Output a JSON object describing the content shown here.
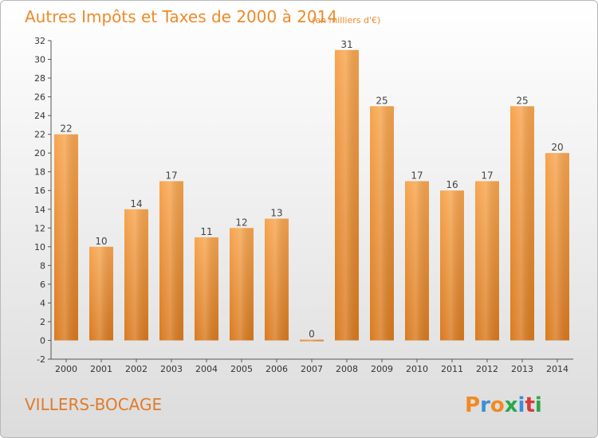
{
  "chart_data": {
    "type": "bar",
    "title": "Autres Impôts et Taxes de 2000 à 2014",
    "subtitle": "(en milliers d'€)",
    "categories": [
      "2000",
      "2001",
      "2002",
      "2003",
      "2004",
      "2005",
      "2006",
      "2007",
      "2008",
      "2009",
      "2010",
      "2011",
      "2012",
      "2013",
      "2014"
    ],
    "values": [
      22,
      10,
      14,
      17,
      11,
      12,
      13,
      0,
      31,
      25,
      17,
      16,
      17,
      25,
      20
    ],
    "ylim": [
      -2,
      32
    ],
    "yticks": [
      -2,
      0,
      2,
      4,
      6,
      8,
      10,
      12,
      14,
      16,
      18,
      20,
      22,
      24,
      26,
      28,
      30,
      32
    ],
    "grid": false,
    "legend": "none"
  },
  "footer": {
    "place": "VILLERS-BOCAGE",
    "brand": "Proxiti"
  },
  "colors": {
    "title": "#ee8a2a",
    "bar_top": "#f7a54f",
    "bar_bottom": "#d97a1f",
    "place": "#e07b2a",
    "brand_letters": [
      "#f08a24",
      "#3a8fd6",
      "#f08a24",
      "#2aa84a",
      "#3a8fd6",
      "#d83a3a",
      "#2aa84a"
    ]
  }
}
